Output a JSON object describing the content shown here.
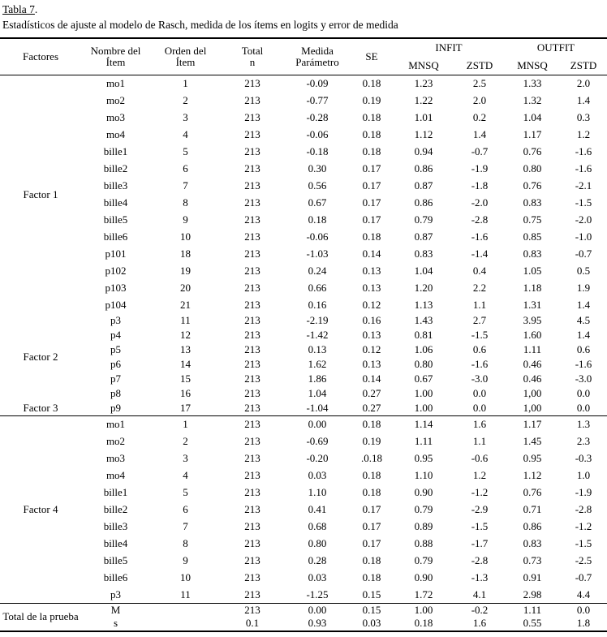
{
  "page": {
    "title_label": "Tabla 7",
    "title_period": ".",
    "subtitle": "Estadísticos de ajuste al modelo de Rasch, medida de los ítems en logits y error de medida"
  },
  "table": {
    "header": {
      "factores": "Factores",
      "nombre_l1": "Nombre del",
      "nombre_l2": "Ítem",
      "orden_l1": "Orden del",
      "orden_l2": "Ítem",
      "total_l1": "Total",
      "total_l2": "n",
      "medida_l1": "Medida",
      "medida_l2": "Parámetro",
      "se": "SE",
      "infit": "INFIT",
      "outfit": "OUTFIT",
      "infit_mnsq": "MNSQ",
      "infit_zstd": "ZSTD",
      "outfit_mnsq": "MNSQ",
      "outfit_zstd": "ZSTD"
    },
    "sections": [
      {
        "factor": "Factor 1",
        "row_class": "",
        "separator_before": false,
        "rows": [
          [
            "mo1",
            "1",
            "213",
            "-0.09",
            "0.18",
            "1.23",
            "2.5",
            "1.33",
            "2.0"
          ],
          [
            "mo2",
            "2",
            "213",
            "-0.77",
            "0.19",
            "1.22",
            "2.0",
            "1.32",
            "1.4"
          ],
          [
            "mo3",
            "3",
            "213",
            "-0.28",
            "0.18",
            "1.01",
            "0.2",
            "1.04",
            "0.3"
          ],
          [
            "mo4",
            "4",
            "213",
            "-0.06",
            "0.18",
            "1.12",
            "1.4",
            "1.17",
            "1.2"
          ],
          [
            "bille1",
            "5",
            "213",
            "-0.18",
            "0.18",
            "0.94",
            "-0.7",
            "0.76",
            "-1.6"
          ],
          [
            "bille2",
            "6",
            "213",
            "0.30",
            "0.17",
            "0.86",
            "-1.9",
            "0.80",
            "-1.6"
          ],
          [
            "bille3",
            "7",
            "213",
            "0.56",
            "0.17",
            "0.87",
            "-1.8",
            "0.76",
            "-2.1"
          ],
          [
            "bille4",
            "8",
            "213",
            "0.67",
            "0.17",
            "0.86",
            "-2.0",
            "0.83",
            "-1.5"
          ],
          [
            "bille5",
            "9",
            "213",
            "0.18",
            "0.17",
            "0.79",
            "-2.8",
            "0.75",
            "-2.0"
          ],
          [
            "bille6",
            "10",
            "213",
            "-0.06",
            "0.18",
            "0.87",
            "-1.6",
            "0.85",
            "-1.0"
          ],
          [
            "p101",
            "18",
            "213",
            "-1.03",
            "0.14",
            "0.83",
            "-1.4",
            "0.83",
            "-0.7"
          ],
          [
            "p102",
            "19",
            "213",
            "0.24",
            "0.13",
            "1.04",
            "0.4",
            "1.05",
            "0.5"
          ],
          [
            "p103",
            "20",
            "213",
            "0.66",
            "0.13",
            "1.20",
            "2.2",
            "1.18",
            "1.9"
          ],
          [
            "p104",
            "21",
            "213",
            "0.16",
            "0.12",
            "1.13",
            "1.1",
            "1.31",
            "1.4"
          ]
        ]
      },
      {
        "factor": "Factor 2",
        "row_class": "tight",
        "separator_before": false,
        "rows": [
          [
            "p3",
            "11",
            "213",
            "-2.19",
            "0.16",
            "1.43",
            "2.7",
            "3.95",
            "4.5"
          ],
          [
            "p4",
            "12",
            "213",
            "-1.42",
            "0.13",
            "0.81",
            "-1.5",
            "1.60",
            "1.4"
          ],
          [
            "p5",
            "13",
            "213",
            "0.13",
            "0.12",
            "1.06",
            "0.6",
            "1.11",
            "0.6"
          ],
          [
            "p6",
            "14",
            "213",
            "1.62",
            "0.13",
            "0.80",
            "-1.6",
            "0.46",
            "-1.6"
          ],
          [
            "p7",
            "15",
            "213",
            "1.86",
            "0.14",
            "0.67",
            "-3.0",
            "0.46",
            "-3.0"
          ],
          [
            "p8",
            "16",
            "213",
            "1.04",
            "0.27",
            "1.00",
            "0.0",
            "1,00",
            "0.0"
          ]
        ]
      },
      {
        "factor": "Factor 3",
        "row_class": "tight",
        "separator_before": false,
        "rows": [
          [
            "p9",
            "17",
            "213",
            "-1.04",
            "0.27",
            "1.00",
            "0.0",
            "1,00",
            "0.0"
          ]
        ]
      },
      {
        "factor": "",
        "row_class": "",
        "separator_before": true,
        "factor_label_row": 5,
        "rows": [
          [
            "mo1",
            "1",
            "213",
            "0.00",
            "0.18",
            "1.14",
            "1.6",
            "1.17",
            "1.3"
          ],
          [
            "mo2",
            "2",
            "213",
            "-0.69",
            "0.19",
            "1.11",
            "1.1",
            "1.45",
            "2.3"
          ],
          [
            "mo3",
            "3",
            "213",
            "-0.20",
            ".0.18",
            "0.95",
            "-0.6",
            "0.95",
            "-0.3"
          ],
          [
            "mo4",
            "4",
            "213",
            "0.03",
            "0.18",
            "1.10",
            "1.2",
            "1.12",
            "1.0"
          ],
          [
            "bille1",
            "5",
            "213",
            "1.10",
            "0.18",
            "0.90",
            "-1.2",
            "0.76",
            "-1.9"
          ],
          [
            "bille2",
            "6",
            "213",
            "0.41",
            "0.17",
            "0.79",
            "-2.9",
            "0.71",
            "-2.8"
          ],
          [
            "bille3",
            "7",
            "213",
            "0.68",
            "0.17",
            "0.89",
            "-1.5",
            "0.86",
            "-1.2"
          ],
          [
            "bille4",
            "8",
            "213",
            "0.80",
            "0.17",
            "0.88",
            "-1.7",
            "0.83",
            "-1.5"
          ],
          [
            "bille5",
            "9",
            "213",
            "0.28",
            "0.18",
            "0.79",
            "-2.8",
            "0.73",
            "-2.5"
          ],
          [
            "bille6",
            "10",
            "213",
            "0.03",
            "0.18",
            "0.90",
            "-1.3",
            "0.91",
            "-0.7"
          ],
          [
            "p3",
            "11",
            "213",
            "-1.25",
            "0.15",
            "1.72",
            "4.1",
            "2.98",
            "4.4"
          ]
        ]
      },
      {
        "factor": "Total de la prueba",
        "row_class": "total-row",
        "separator_before": true,
        "rows": [
          [
            "M",
            "",
            "213",
            "0.00",
            "0.15",
            "1.00",
            "-0.2",
            "1.11",
            "0.0"
          ],
          [
            "s",
            "",
            "0.1",
            "0.93",
            "0.03",
            "0.18",
            "1.6",
            "0.55",
            "1.8"
          ]
        ]
      }
    ],
    "factor4_label": "Factor 4"
  }
}
